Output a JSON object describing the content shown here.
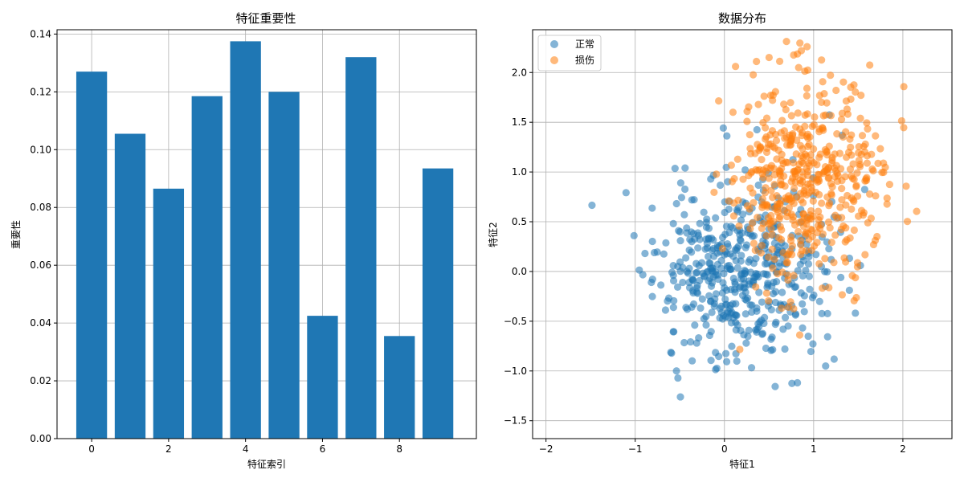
{
  "chart_data": [
    {
      "type": "bar",
      "title": "特征重要性",
      "xlabel": "特征索引",
      "ylabel": "重要性",
      "categories": [
        0,
        1,
        2,
        3,
        4,
        5,
        6,
        7,
        8,
        9
      ],
      "values": [
        0.127,
        0.1055,
        0.0865,
        0.1185,
        0.1375,
        0.12,
        0.0425,
        0.132,
        0.0355,
        0.0935
      ],
      "xlim": [
        -0.9,
        10.0
      ],
      "ylim": [
        0,
        0.1415
      ],
      "xticks": [
        0,
        2,
        4,
        6,
        8
      ],
      "yticks": [
        0.0,
        0.02,
        0.04,
        0.06,
        0.08,
        0.1,
        0.12,
        0.14
      ],
      "grid": true,
      "bar_color": "#1f77b4"
    },
    {
      "type": "scatter",
      "title": "数据分布",
      "xlabel": "特征1",
      "ylabel": "特征2",
      "xlim": [
        -2.15,
        2.55
      ],
      "ylim": [
        -1.68,
        2.43
      ],
      "xticks": [
        -2,
        -1,
        0,
        1,
        2
      ],
      "yticks": [
        -1.5,
        -1.0,
        -0.5,
        0.0,
        0.5,
        1.0,
        1.5,
        2.0
      ],
      "grid": true,
      "legend_position": "top-left",
      "series": [
        {
          "name": "正常",
          "color": "#1f77b4",
          "generator": {
            "n": 500,
            "cx": 0.18,
            "cy": 0.02,
            "sx": 0.48,
            "sy": 0.45,
            "seed": 11
          }
        },
        {
          "name": "损伤",
          "color": "#ff7f0e",
          "generator": {
            "n": 500,
            "cx": 0.92,
            "cy": 0.95,
            "sx": 0.42,
            "sy": 0.52,
            "seed": 29
          }
        }
      ]
    }
  ]
}
